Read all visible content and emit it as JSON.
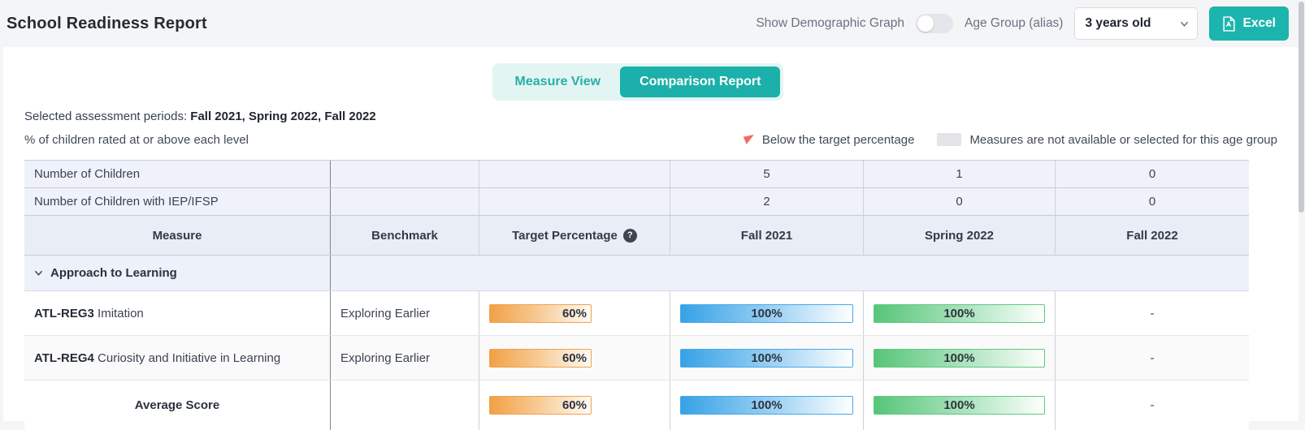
{
  "header": {
    "title": "School Readiness Report",
    "toggle_label": "Show Demographic Graph",
    "age_group_label": "Age Group (alias)",
    "age_group_value": "3 years old",
    "excel_button_label": "Excel"
  },
  "tabs": [
    {
      "label": "Measure View",
      "active": false
    },
    {
      "label": "Comparison Report",
      "active": true
    }
  ],
  "meta": {
    "periods_label": "Selected assessment periods: ",
    "periods_value": "Fall 2021, Spring 2022, Fall 2022",
    "subtitle": "% of children rated at or above each level"
  },
  "legend": {
    "below_target": "Below the target percentage",
    "not_available": "Measures are not available or selected for this age group"
  },
  "table": {
    "columns": [
      "Measure",
      "Benchmark",
      "Target Percentage",
      "Fall 2021",
      "Spring 2022",
      "Fall 2022"
    ],
    "summary_rows": [
      {
        "label": "Number of Children",
        "values": [
          "5",
          "1",
          "0"
        ]
      },
      {
        "label": "Number of Children with IEP/IFSP",
        "values": [
          "2",
          "0",
          "0"
        ]
      }
    ],
    "group_label": "Approach to Learning",
    "rows": [
      {
        "code": "ATL-REG3",
        "name": " Imitation",
        "benchmark": "Exploring Earlier",
        "target": 60,
        "fall2021": 100,
        "spring2022": 100,
        "fall2022": "-"
      },
      {
        "code": "ATL-REG4",
        "name": " Curiosity and Initiative in Learning",
        "benchmark": "Exploring Earlier",
        "target": 60,
        "fall2021": 100,
        "spring2022": 100,
        "fall2022": "-"
      }
    ],
    "average": {
      "label": "Average Score",
      "target": 60,
      "fall2021": 100,
      "spring2022": 100,
      "fall2022": "-"
    }
  },
  "colors": {
    "accent_teal": "#1cb5ad",
    "tab_bg": "#e2f5f3",
    "target_bar": "#f2a047",
    "period1_bar": "#36a2e6",
    "period2_bar": "#57c578",
    "flag_red": "#f26b6b",
    "unavailable_gray": "#e3e4e7",
    "summary_row_bg": "#eff2fb",
    "header_row_bg": "#e9edf5"
  }
}
